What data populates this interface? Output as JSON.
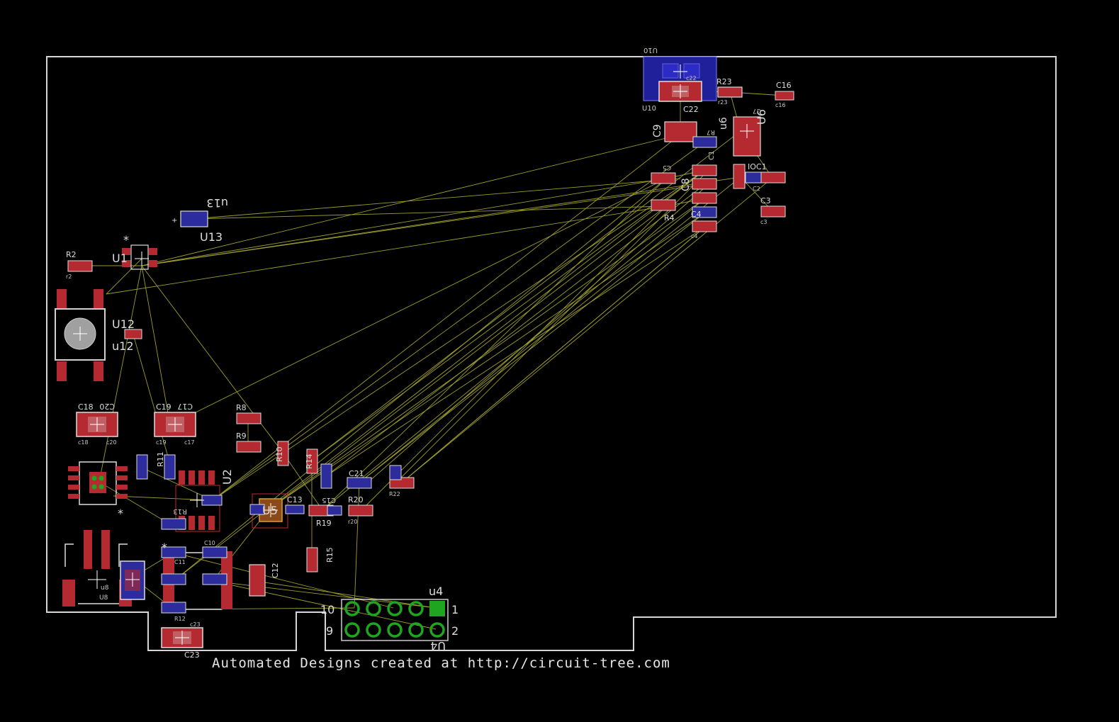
{
  "footer_text": "Automated Designs created at http://circuit-tree.com",
  "colors": {
    "background": "#000000",
    "outline": "#d6d6d6",
    "airwire": "#c8c83a",
    "pad_top": "#c0282f",
    "pad_bottom": "#2c2c9c",
    "silk": "#d0d0d0",
    "via": "#1fa51f"
  },
  "labels": {
    "u10_top": "U10",
    "u10_bot": "U10",
    "c22": "C22",
    "c22_small": "c22",
    "r23": "R23",
    "r23_small": "r23",
    "c16": "C16",
    "c16_small": "c16",
    "u6a": "U6",
    "u6b": "u6",
    "c7": "C7",
    "r7": "R7",
    "c9a": "C9",
    "c9b": "c9",
    "c5": "C5",
    "c8": "C8",
    "r4": "R4",
    "c1": "C1",
    "c2": "C2",
    "c3": "C3",
    "c3_small": "c3",
    "c4": "C4",
    "c4_small": "c4",
    "ioc1": "IOC1",
    "u13a": "u13",
    "u13b": "U13",
    "r2": "R2",
    "r2_small": "r2",
    "u1": "U1",
    "u12a": "U12",
    "u12b": "u12",
    "c18": "C18",
    "c18_small": "c18",
    "c20": "C20",
    "c20_small": "c20",
    "c19": "C19",
    "c19_small": "c19",
    "c17": "C17",
    "c17_small": "c17",
    "r8": "R8",
    "r9": "R9",
    "r10": "R10",
    "r14": "R14",
    "r11": "R11",
    "u2": "U2",
    "r13": "R13",
    "u5": "U5",
    "c13": "C13",
    "c15": "C15",
    "r19": "R19",
    "r20": "R20",
    "r20_small": "r20",
    "c21": "C21",
    "r22": "R22",
    "r22_small": "r22",
    "r15": "R15",
    "c12": "C12",
    "c10": "C10",
    "c11": "C11",
    "r12": "R12",
    "c23": "C23",
    "c23_small": "c23",
    "u8": "u8",
    "u8b": "U8",
    "u4a": "u4",
    "u4b": "U4",
    "pin1": "1",
    "pin2": "2",
    "pin9": "9",
    "pin10": "10"
  }
}
